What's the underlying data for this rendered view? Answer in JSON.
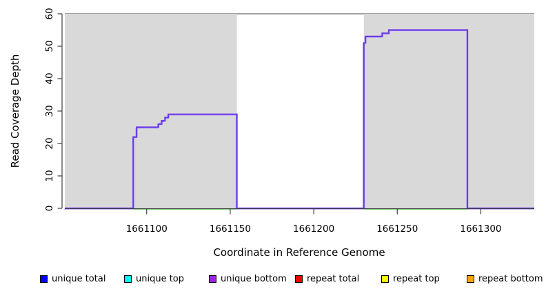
{
  "chart_data": {
    "type": "line",
    "subtype": "step-after-coverage",
    "title": "",
    "xlabel": "Coordinate in Reference Genome",
    "ylabel": "Read Coverage Depth",
    "xlim": [
      1661051,
      1661332
    ],
    "ylim": [
      0,
      60
    ],
    "x_ticks": [
      1661100,
      1661150,
      1661200,
      1661250,
      1661300
    ],
    "y_ticks": [
      0,
      10,
      20,
      30,
      40,
      50,
      60
    ],
    "grid": false,
    "plot_background": "#ffffff",
    "shaded_region_color": "#d9d9d9",
    "shaded_regions": [
      {
        "x0": 1661051,
        "x1": 1661154
      },
      {
        "x0": 1661230,
        "x1": 1661332
      }
    ],
    "box_top_color": "#808080",
    "axis_color": "#404040",
    "series": [
      {
        "name": "unique bottom",
        "color": "#6b3be8",
        "halo_color": "#b9a8f2",
        "points": [
          [
            1661051,
            0
          ],
          [
            1661092,
            22
          ],
          [
            1661094,
            25
          ],
          [
            1661107,
            26
          ],
          [
            1661109,
            27
          ],
          [
            1661111,
            28
          ],
          [
            1661113,
            29
          ],
          [
            1661154,
            0
          ],
          [
            1661230,
            51
          ],
          [
            1661231,
            53
          ],
          [
            1661241,
            54
          ],
          [
            1661245,
            55
          ],
          [
            1661292,
            0
          ],
          [
            1661332,
            0
          ]
        ]
      }
    ],
    "zero_baseline": {
      "name": "covered-region-baseline",
      "color": "#82c982",
      "y": 0,
      "x_ranges": [
        [
          1661092,
          1661154
        ],
        [
          1661230,
          1661292
        ]
      ]
    }
  },
  "legend": {
    "items": [
      {
        "label": "unique total",
        "color": "#0000ff"
      },
      {
        "label": "unique top",
        "color": "#00ffff"
      },
      {
        "label": "unique bottom",
        "color": "#a020f0"
      },
      {
        "label": "repeat total",
        "color": "#ee0000"
      },
      {
        "label": "repeat top",
        "color": "#ffff00"
      },
      {
        "label": "repeat bottom",
        "color": "#ffa500"
      }
    ]
  }
}
